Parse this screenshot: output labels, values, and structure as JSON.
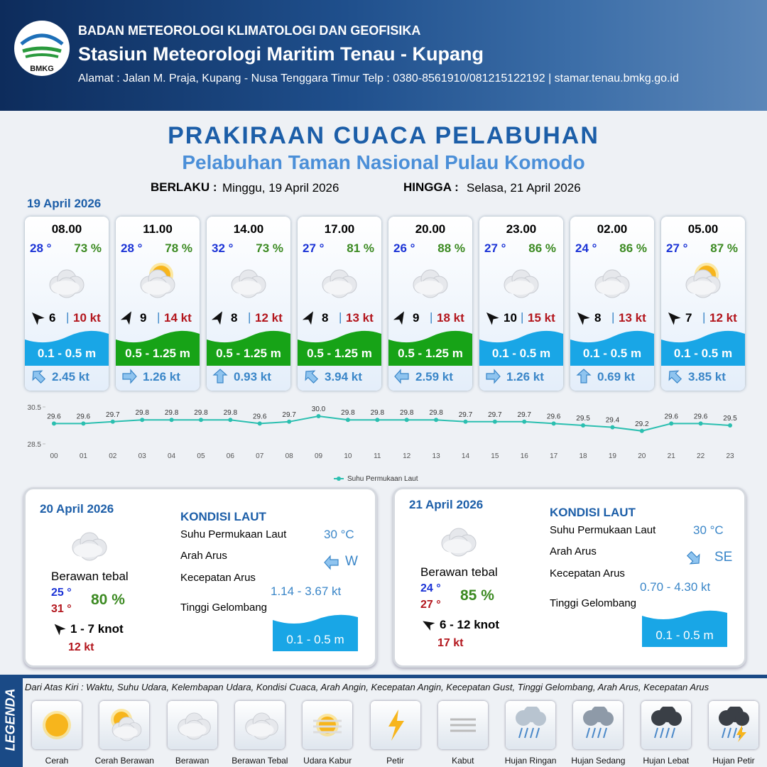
{
  "header": {
    "organization": "BADAN METEOROLOGI KLIMATOLOGI DAN GEOFISIKA",
    "station": "Stasiun Meteorologi Maritim Tenau - Kupang",
    "address": "Alamat : Jalan M. Praja, Kupang - Nusa Tenggara Timur Telp : 0380-8561910/081215122192  | stamar.tenau.bmkg.go.id",
    "logo_text": "BMKG"
  },
  "title": "PRAKIRAAN CUACA PELABUHAN",
  "subtitle": "Pelabuhan Taman Nasional Pulau Komodo",
  "valid_from_label": "BERLAKU :",
  "valid_from": "Minggu, 19 April 2026",
  "valid_to_label": "HINGGA :",
  "valid_to": "Selasa, 21 April 2026",
  "day1_date": "19 April 2026",
  "forecasts": [
    {
      "time": "08.00",
      "temp": "28 °",
      "humidity": "73 %",
      "wind_speed": "6",
      "gust": "10 kt",
      "wave": "0.1 - 0.5 m",
      "current_speed": "2.45 kt"
    },
    {
      "time": "11.00",
      "temp": "28 °",
      "humidity": "78 %",
      "wind_speed": "9",
      "gust": "14 kt",
      "wave": "0.5 - 1.25 m",
      "current_speed": "1.26 kt"
    },
    {
      "time": "14.00",
      "temp": "32 °",
      "humidity": "73 %",
      "wind_speed": "8",
      "gust": "12 kt",
      "wave": "0.5 - 1.25 m",
      "current_speed": "0.93 kt"
    },
    {
      "time": "17.00",
      "temp": "27 °",
      "humidity": "81 %",
      "wind_speed": "8",
      "gust": "13 kt",
      "wave": "0.5 - 1.25 m",
      "current_speed": "3.94 kt"
    },
    {
      "time": "20.00",
      "temp": "26 °",
      "humidity": "88 %",
      "wind_speed": "9",
      "gust": "18 kt",
      "wave": "0.5 - 1.25 m",
      "current_speed": "2.59 kt"
    },
    {
      "time": "23.00",
      "temp": "27 °",
      "humidity": "86 %",
      "wind_speed": "10",
      "gust": "15 kt",
      "wave": "0.1 - 0.5 m",
      "current_speed": "1.26 kt"
    },
    {
      "time": "02.00",
      "temp": "24 °",
      "humidity": "86 %",
      "wind_speed": "8",
      "gust": "13 kt",
      "wave": "0.1 - 0.5 m",
      "current_speed": "0.69 kt"
    },
    {
      "time": "05.00",
      "temp": "27 °",
      "humidity": "87 %",
      "wind_speed": "7",
      "gust": "12 kt",
      "wave": "0.1 - 0.5 m",
      "current_speed": "3.85 kt"
    }
  ],
  "sst_chart": {
    "type": "line",
    "categories": [
      "00",
      "01",
      "02",
      "03",
      "04",
      "05",
      "06",
      "07",
      "08",
      "09",
      "10",
      "11",
      "12",
      "13",
      "14",
      "15",
      "16",
      "17",
      "18",
      "19",
      "20",
      "21",
      "22",
      "23"
    ],
    "series": [
      {
        "name": "Suhu Permukaan Laut",
        "color": "#2bbfb0",
        "values": [
          29.6,
          29.6,
          29.7,
          29.8,
          29.8,
          29.8,
          29.8,
          29.6,
          29.7,
          30.0,
          29.8,
          29.8,
          29.8,
          29.8,
          29.7,
          29.7,
          29.7,
          29.6,
          29.5,
          29.4,
          29.2,
          29.6,
          29.6,
          29.5
        ],
        "value_labels": [
          "29.6",
          "29.6",
          "29.7",
          "29.8",
          "29.8",
          "29.8",
          "29.8",
          "29.6",
          "29.7",
          "30.0",
          "29.8",
          "29.8",
          "29.8",
          "29.8",
          "29.7",
          "29.7",
          "29.7",
          "29.6",
          "29.5",
          "29.4",
          "29.2",
          "29.6",
          "29.6",
          "29.5"
        ]
      }
    ],
    "ylim": [
      28.5,
      30.5
    ],
    "yticks": [
      28.5,
      30.5
    ]
  },
  "days": [
    {
      "date": "20 April 2026",
      "weather": "Berawan tebal",
      "temp_min": "25 °",
      "temp_max": "31 °",
      "humidity": "80 %",
      "wind": "1 - 7 knot",
      "gust": "12 kt",
      "sea_heading": "KONDISI LAUT",
      "sst_label": "Suhu Permukaan Laut",
      "sst": "30 °C",
      "current_dir_label": "Arah Arus",
      "current_dir": "W",
      "current_speed_label": "Kecepatan Arus",
      "current_speed": "1.14 - 3.67 kt",
      "wave_label": "Tinggi Gelombang",
      "wave": "0.1 - 0.5 m"
    },
    {
      "date": "21 April 2026",
      "weather": "Berawan tebal",
      "temp_min": "24 °",
      "temp_max": "27 °",
      "humidity": "85 %",
      "wind": "6 - 12 knot",
      "gust": "17 kt",
      "sea_heading": "KONDISI LAUT",
      "sst_label": "Suhu Permukaan Laut",
      "sst": "30 °C",
      "current_dir_label": "Arah Arus",
      "current_dir": "SE",
      "current_speed_label": "Kecepatan Arus",
      "current_speed": "0.70 - 4.30 kt",
      "wave_label": "Tinggi Gelombang",
      "wave": "0.1 - 0.5 m"
    }
  ],
  "legend": {
    "title": "LEGENDA",
    "description": "Dari Atas Kiri : Waktu, Suhu Udara, Kelembapan Udara, Kondisi Cuaca, Arah Angin, Kecepatan Angin, Kecepatan Gust, Tinggi Gelombang, Arah Arus, Kecepatan Arus",
    "items": [
      "Cerah",
      "Cerah Berawan",
      "Berawan",
      "Berawan Tebal",
      "Udara Kabur",
      "Petir",
      "Kabut",
      "Hujan Ringan",
      "Hujan Sedang",
      "Hujan Lebat",
      "Hujan Petir"
    ]
  }
}
